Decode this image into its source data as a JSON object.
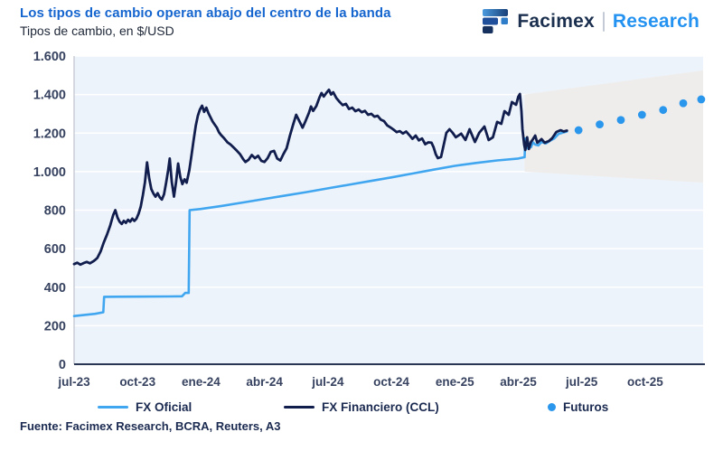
{
  "header": {
    "title": "Los tipos de cambio operan abajo del centro de la banda",
    "subtitle": "Tipos de cambio, en $/USD",
    "logo": {
      "brand": "Facimex",
      "suffix": "Research"
    }
  },
  "legend": [
    {
      "label": "FX Oficial",
      "type": "line",
      "color": "#41a6f0"
    },
    {
      "label": "FX Financiero (CCL)",
      "type": "line",
      "color": "#101d4d"
    },
    {
      "label": "Futuros",
      "type": "dot",
      "color": "#2a96ec"
    }
  ],
  "footer": {
    "source": "Fuente: Facimex Research, BCRA, Reuters, A3"
  },
  "colors": {
    "title_blue": "#1565cf",
    "research_blue": "#2492f0",
    "navy_text": "#1b2a50",
    "axis_label": "#36425f",
    "plot_bg": "#edf3fa",
    "band_gray": "#eeecea",
    "gridline": "#ffffff",
    "bottom_axis": "#2a3553",
    "left_axis": "#c9cdd6"
  },
  "chart_data": {
    "type": "line",
    "title": "Los tipos de cambio operan abajo del centro de la banda",
    "subtitle": "Tipos de cambio, en $/USD",
    "ylim": [
      0,
      1600
    ],
    "xlim_months": [
      0,
      29.74
    ],
    "y_ticks": [
      0,
      200,
      400,
      600,
      800,
      1000,
      1200,
      1400,
      1600
    ],
    "y_tick_labels": [
      "0",
      "200",
      "400",
      "600",
      "800",
      "1.000",
      "1.200",
      "1.400",
      "1.600"
    ],
    "x_tick_months": [
      0,
      3,
      6,
      9,
      12,
      15,
      18,
      21,
      24,
      27
    ],
    "x_tick_labels": [
      "jul-23",
      "oct-23",
      "ene-24",
      "abr-24",
      "jul-24",
      "oct-24",
      "ene-25",
      "abr-25",
      "jul-25",
      "oct-25"
    ],
    "grid": true,
    "legend_position": "bottom",
    "band": {
      "name": "banda cambiaria proyectada",
      "start_month": 21.3,
      "end_month": 29.74,
      "top": [
        1400,
        1525
      ],
      "bottom": [
        1000,
        943
      ]
    },
    "series": [
      {
        "name": "FX Oficial",
        "color": "#41a6f0",
        "width": 2.6,
        "points": [
          [
            0,
            250
          ],
          [
            0.5,
            256
          ],
          [
            1.0,
            262
          ],
          [
            1.38,
            270
          ],
          [
            1.42,
            350
          ],
          [
            3.0,
            351
          ],
          [
            4.5,
            352
          ],
          [
            5.1,
            353
          ],
          [
            5.25,
            370
          ],
          [
            5.42,
            370
          ],
          [
            5.46,
            800
          ],
          [
            6,
            806
          ],
          [
            7,
            822
          ],
          [
            8,
            840
          ],
          [
            9,
            858
          ],
          [
            10,
            876
          ],
          [
            11,
            894
          ],
          [
            12,
            913
          ],
          [
            13,
            932
          ],
          [
            14,
            951
          ],
          [
            15,
            970
          ],
          [
            16,
            990
          ],
          [
            17,
            1010
          ],
          [
            18,
            1030
          ],
          [
            19,
            1045
          ],
          [
            20,
            1058
          ],
          [
            21,
            1068
          ],
          [
            21.3,
            1075
          ],
          [
            21.33,
            1172
          ],
          [
            21.4,
            1120
          ],
          [
            21.5,
            1146
          ],
          [
            21.6,
            1126
          ],
          [
            21.7,
            1152
          ],
          [
            21.8,
            1140
          ],
          [
            21.95,
            1136
          ],
          [
            22.1,
            1154
          ],
          [
            22.3,
            1146
          ],
          [
            22.5,
            1160
          ],
          [
            22.7,
            1172
          ],
          [
            22.9,
            1195
          ],
          [
            23.1,
            1202
          ],
          [
            23.3,
            1208
          ]
        ]
      },
      {
        "name": "FX Financiero (CCL)",
        "color": "#101d4d",
        "width": 2.8,
        "points": [
          [
            0,
            520
          ],
          [
            0.15,
            527
          ],
          [
            0.3,
            517
          ],
          [
            0.45,
            525
          ],
          [
            0.6,
            531
          ],
          [
            0.75,
            524
          ],
          [
            0.9,
            534
          ],
          [
            1.0,
            542
          ],
          [
            1.1,
            552
          ],
          [
            1.25,
            585
          ],
          [
            1.4,
            632
          ],
          [
            1.55,
            672
          ],
          [
            1.7,
            718
          ],
          [
            1.85,
            775
          ],
          [
            1.95,
            800
          ],
          [
            2.05,
            762
          ],
          [
            2.15,
            740
          ],
          [
            2.25,
            728
          ],
          [
            2.35,
            744
          ],
          [
            2.45,
            734
          ],
          [
            2.55,
            750
          ],
          [
            2.65,
            740
          ],
          [
            2.75,
            756
          ],
          [
            2.85,
            744
          ],
          [
            2.95,
            756
          ],
          [
            3.05,
            782
          ],
          [
            3.15,
            818
          ],
          [
            3.25,
            878
          ],
          [
            3.35,
            945
          ],
          [
            3.45,
            1048
          ],
          [
            3.55,
            965
          ],
          [
            3.65,
            910
          ],
          [
            3.75,
            886
          ],
          [
            3.85,
            870
          ],
          [
            3.95,
            888
          ],
          [
            4.05,
            866
          ],
          [
            4.15,
            855
          ],
          [
            4.25,
            882
          ],
          [
            4.35,
            942
          ],
          [
            4.45,
            1008
          ],
          [
            4.52,
            1068
          ],
          [
            4.62,
            945
          ],
          [
            4.72,
            870
          ],
          [
            4.82,
            945
          ],
          [
            4.92,
            1042
          ],
          [
            5.02,
            972
          ],
          [
            5.12,
            935
          ],
          [
            5.22,
            960
          ],
          [
            5.32,
            942
          ],
          [
            5.45,
            1008
          ],
          [
            5.55,
            1085
          ],
          [
            5.65,
            1162
          ],
          [
            5.75,
            1238
          ],
          [
            5.85,
            1290
          ],
          [
            5.95,
            1322
          ],
          [
            6.05,
            1342
          ],
          [
            6.15,
            1310
          ],
          [
            6.25,
            1332
          ],
          [
            6.35,
            1304
          ],
          [
            6.45,
            1282
          ],
          [
            6.55,
            1260
          ],
          [
            6.65,
            1244
          ],
          [
            6.75,
            1228
          ],
          [
            6.85,
            1204
          ],
          [
            6.95,
            1190
          ],
          [
            7.1,
            1172
          ],
          [
            7.25,
            1152
          ],
          [
            7.4,
            1140
          ],
          [
            7.55,
            1124
          ],
          [
            7.7,
            1108
          ],
          [
            7.85,
            1090
          ],
          [
            8.0,
            1064
          ],
          [
            8.1,
            1050
          ],
          [
            8.25,
            1062
          ],
          [
            8.4,
            1086
          ],
          [
            8.55,
            1070
          ],
          [
            8.7,
            1082
          ],
          [
            8.85,
            1056
          ],
          [
            9.0,
            1050
          ],
          [
            9.15,
            1070
          ],
          [
            9.3,
            1102
          ],
          [
            9.45,
            1108
          ],
          [
            9.6,
            1068
          ],
          [
            9.75,
            1058
          ],
          [
            9.9,
            1092
          ],
          [
            10.05,
            1122
          ],
          [
            10.2,
            1185
          ],
          [
            10.35,
            1242
          ],
          [
            10.5,
            1295
          ],
          [
            10.65,
            1262
          ],
          [
            10.8,
            1228
          ],
          [
            10.95,
            1265
          ],
          [
            11.1,
            1305
          ],
          [
            11.2,
            1338
          ],
          [
            11.3,
            1315
          ],
          [
            11.45,
            1340
          ],
          [
            11.6,
            1385
          ],
          [
            11.7,
            1408
          ],
          [
            11.8,
            1390
          ],
          [
            11.95,
            1412
          ],
          [
            12.05,
            1425
          ],
          [
            12.15,
            1400
          ],
          [
            12.25,
            1412
          ],
          [
            12.4,
            1382
          ],
          [
            12.55,
            1362
          ],
          [
            12.7,
            1345
          ],
          [
            12.85,
            1352
          ],
          [
            13.0,
            1325
          ],
          [
            13.15,
            1332
          ],
          [
            13.3,
            1314
          ],
          [
            13.45,
            1322
          ],
          [
            13.6,
            1308
          ],
          [
            13.75,
            1315
          ],
          [
            13.9,
            1295
          ],
          [
            14.05,
            1300
          ],
          [
            14.2,
            1285
          ],
          [
            14.35,
            1290
          ],
          [
            14.5,
            1270
          ],
          [
            14.65,
            1262
          ],
          [
            14.8,
            1240
          ],
          [
            14.95,
            1230
          ],
          [
            15.1,
            1218
          ],
          [
            15.25,
            1205
          ],
          [
            15.4,
            1210
          ],
          [
            15.55,
            1198
          ],
          [
            15.7,
            1208
          ],
          [
            15.85,
            1190
          ],
          [
            16.0,
            1170
          ],
          [
            16.15,
            1187
          ],
          [
            16.3,
            1162
          ],
          [
            16.45,
            1172
          ],
          [
            16.6,
            1142
          ],
          [
            16.75,
            1152
          ],
          [
            16.9,
            1150
          ],
          [
            17.0,
            1126
          ],
          [
            17.1,
            1090
          ],
          [
            17.2,
            1070
          ],
          [
            17.35,
            1076
          ],
          [
            17.5,
            1150
          ],
          [
            17.6,
            1201
          ],
          [
            17.75,
            1220
          ],
          [
            17.9,
            1201
          ],
          [
            18.05,
            1178
          ],
          [
            18.3,
            1197
          ],
          [
            18.5,
            1164
          ],
          [
            18.7,
            1220
          ],
          [
            18.95,
            1154
          ],
          [
            19.15,
            1201
          ],
          [
            19.4,
            1234
          ],
          [
            19.6,
            1164
          ],
          [
            19.8,
            1178
          ],
          [
            20.0,
            1258
          ],
          [
            20.2,
            1248
          ],
          [
            20.35,
            1314
          ],
          [
            20.55,
            1295
          ],
          [
            20.7,
            1361
          ],
          [
            20.9,
            1347
          ],
          [
            21.0,
            1389
          ],
          [
            21.08,
            1403
          ],
          [
            21.15,
            1314
          ],
          [
            21.2,
            1220
          ],
          [
            21.28,
            1140
          ],
          [
            21.33,
            1112
          ],
          [
            21.42,
            1178
          ],
          [
            21.5,
            1117
          ],
          [
            21.6,
            1154
          ],
          [
            21.7,
            1169
          ],
          [
            21.8,
            1187
          ],
          [
            21.9,
            1150
          ],
          [
            22.1,
            1169
          ],
          [
            22.25,
            1150
          ],
          [
            22.45,
            1159
          ],
          [
            22.6,
            1173
          ],
          [
            22.8,
            1206
          ],
          [
            23.0,
            1215
          ],
          [
            23.15,
            1208
          ],
          [
            23.3,
            1213
          ]
        ]
      }
    ],
    "futures": {
      "name": "Futuros",
      "color": "#2a96ec",
      "radius": 4.4,
      "points": [
        [
          23.85,
          1215
        ],
        [
          24.85,
          1245
        ],
        [
          25.85,
          1268
        ],
        [
          26.85,
          1295
        ],
        [
          27.85,
          1320
        ],
        [
          28.8,
          1355
        ],
        [
          29.65,
          1375
        ]
      ]
    }
  }
}
